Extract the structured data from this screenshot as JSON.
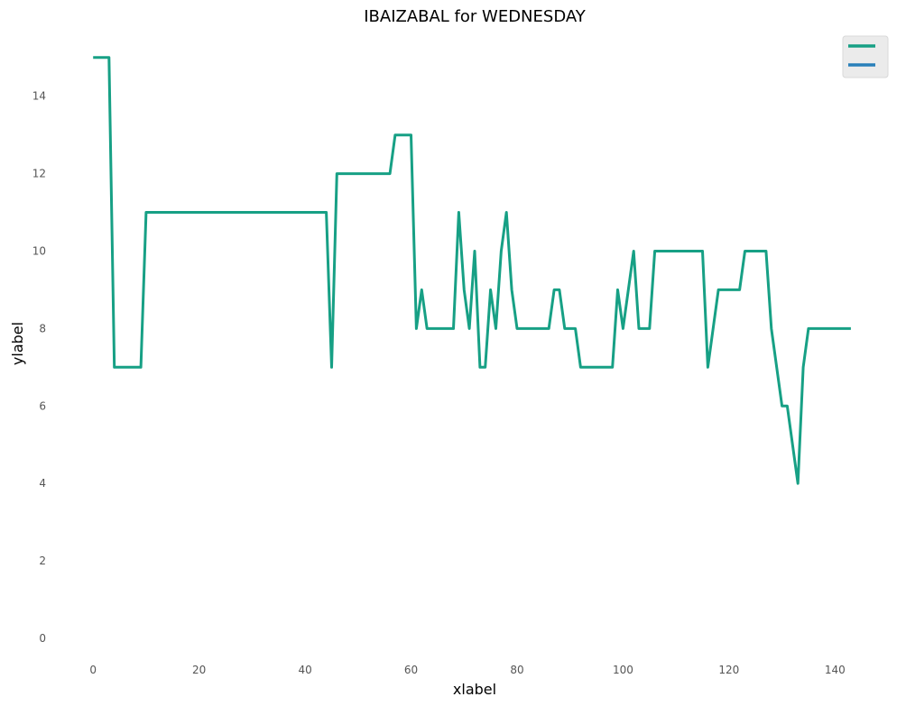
{
  "chart_data": {
    "type": "line",
    "title": "IBAIZABAL for WEDNESDAY",
    "xlabel": "xlabel",
    "ylabel": "ylabel",
    "xlim": [
      -6,
      150
    ],
    "ylim": [
      -0.7,
      15.6
    ],
    "xticks": [
      0,
      20,
      40,
      60,
      80,
      100,
      120,
      140
    ],
    "yticks": [
      0,
      2,
      4,
      6,
      8,
      10,
      12,
      14
    ],
    "grid": false,
    "legend_position": "top-right",
    "series": [
      {
        "color": "#17a085",
        "points": [
          [
            0,
            15
          ],
          [
            3,
            15
          ],
          [
            4,
            7
          ],
          [
            9,
            7
          ],
          [
            10,
            11
          ],
          [
            44,
            11
          ],
          [
            45,
            7
          ],
          [
            46,
            12
          ],
          [
            56,
            12
          ],
          [
            57,
            13
          ],
          [
            60,
            13
          ],
          [
            61,
            8
          ],
          [
            62,
            9
          ],
          [
            63,
            8
          ],
          [
            68,
            8
          ],
          [
            69,
            11
          ],
          [
            70,
            9
          ],
          [
            71,
            8
          ],
          [
            72,
            10
          ],
          [
            73,
            7
          ],
          [
            74,
            7
          ],
          [
            75,
            9
          ],
          [
            76,
            8
          ],
          [
            77,
            10
          ],
          [
            78,
            11
          ],
          [
            79,
            9
          ],
          [
            80,
            8
          ],
          [
            86,
            8
          ],
          [
            87,
            9
          ],
          [
            88,
            9
          ],
          [
            89,
            8
          ],
          [
            91,
            8
          ],
          [
            92,
            7
          ],
          [
            98,
            7
          ],
          [
            99,
            9
          ],
          [
            100,
            8
          ],
          [
            102,
            10
          ],
          [
            103,
            8
          ],
          [
            105,
            8
          ],
          [
            106,
            10
          ],
          [
            115,
            10
          ],
          [
            116,
            7
          ],
          [
            118,
            9
          ],
          [
            122,
            9
          ],
          [
            123,
            10
          ],
          [
            127,
            10
          ],
          [
            128,
            8
          ],
          [
            130,
            6
          ],
          [
            131,
            6
          ],
          [
            133,
            4
          ],
          [
            134,
            7
          ],
          [
            135,
            8
          ],
          [
            143,
            8
          ]
        ]
      },
      {
        "color": "#2980b9",
        "points": []
      }
    ]
  }
}
